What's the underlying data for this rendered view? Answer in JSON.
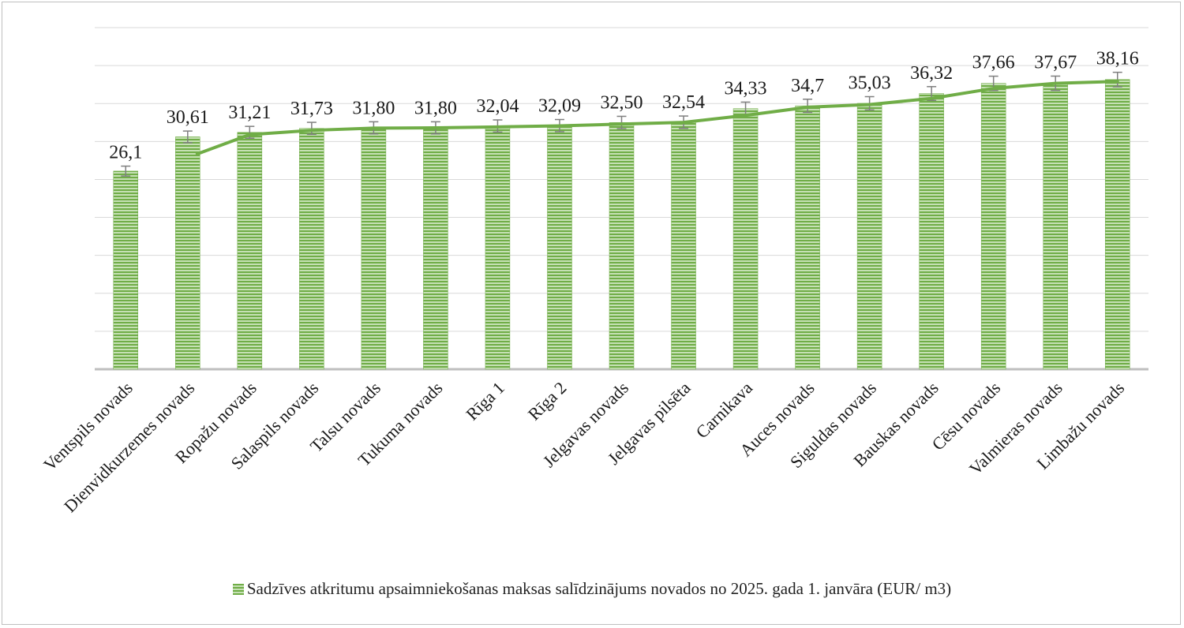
{
  "chart_data": {
    "type": "bar",
    "categories": [
      "Ventspils novads",
      "Dienvidkurzemes novads",
      "Ropažu  novads",
      "Salaspils novads",
      "Talsu novads",
      "Tukuma novads",
      "Rīga 1",
      "Rīga 2",
      "Jelgavas novads",
      "Jelgavas pilsēta",
      "Carnikava",
      "Auces novads",
      "Siguldas novads",
      "Bauskas novads",
      "Cēsu novads",
      "Valmieras novads",
      "Limbažu novads"
    ],
    "values": [
      26.1,
      30.61,
      31.21,
      31.73,
      31.8,
      31.8,
      32.04,
      32.09,
      32.5,
      32.54,
      34.33,
      34.7,
      35.03,
      36.32,
      37.66,
      37.67,
      38.16
    ],
    "data_labels": [
      "26,1",
      "30,61",
      "31,21",
      "31,73",
      "31,80",
      "31,80",
      "32,04",
      "32,09",
      "32,50",
      "32,54",
      "34,33",
      "34,7",
      "35,03",
      "36,32",
      "37,66",
      "37,67",
      "38,16"
    ],
    "series": [
      {
        "name": "Sadzīves atkritumu apsaimniekošanas maksas salīdzinājums novados no 2025. gada 1. janvāra (EUR/ m3)",
        "values": [
          26.1,
          30.61,
          31.21,
          31.73,
          31.8,
          31.8,
          32.04,
          32.09,
          32.5,
          32.54,
          34.33,
          34.7,
          35.03,
          36.32,
          37.66,
          37.67,
          38.16
        ]
      }
    ],
    "trendline": "moving average",
    "error_bars": true,
    "ylim": [
      0,
      45
    ],
    "grid": true,
    "legend_position": "bottom",
    "colors": {
      "bar": "#70ad47",
      "bar_light": "#c5e0b4",
      "line": "#70ad47",
      "error": "#7f7f7f",
      "grid": "#d9d9d9",
      "axis": "#bfbfbf"
    }
  }
}
